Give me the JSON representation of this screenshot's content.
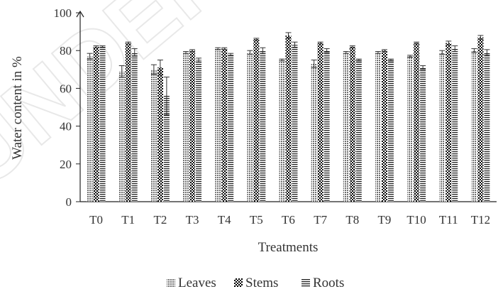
{
  "watermark_text": "UNDER",
  "colors": {
    "axis": "#222222",
    "bar": "#111111"
  },
  "chart_data": {
    "type": "bar",
    "title": "",
    "xlabel": "Treatments",
    "ylabel": "Water content in %",
    "ylim": [
      0,
      100
    ],
    "yticks": [
      0,
      20,
      40,
      60,
      80,
      100
    ],
    "grid": false,
    "legend_position": "bottom",
    "categories": [
      "T0",
      "T1",
      "T2",
      "T3",
      "T4",
      "T5",
      "T6",
      "T7",
      "T8",
      "T9",
      "T10",
      "T11",
      "T12"
    ],
    "series": [
      {
        "name": "Leaves",
        "pattern": "dots",
        "values": [
          77,
          69,
          70,
          79,
          81,
          79,
          75,
          73,
          79,
          79,
          77,
          79,
          80
        ],
        "errors": [
          1.5,
          3,
          2.5,
          0.5,
          0.5,
          1,
          0.5,
          2,
          0.5,
          0.5,
          0.5,
          1,
          1
        ]
      },
      {
        "name": "Stems",
        "pattern": "checker",
        "values": [
          82,
          84,
          71,
          80,
          81,
          86,
          88,
          84,
          82,
          80,
          84,
          84,
          87
        ],
        "errors": [
          0.5,
          0.5,
          4,
          0.5,
          0.5,
          0.5,
          1.5,
          0.5,
          0.5,
          0.5,
          0.5,
          1,
          1
        ]
      },
      {
        "name": "Roots",
        "pattern": "lines",
        "values": [
          82,
          79,
          56,
          75,
          78,
          80,
          83,
          80,
          75,
          75,
          71,
          81,
          79
        ],
        "errors": [
          0.5,
          2,
          10,
          1,
          0.5,
          1.5,
          1.5,
          1,
          0.5,
          0.5,
          1,
          1.5,
          1.5
        ]
      }
    ]
  }
}
